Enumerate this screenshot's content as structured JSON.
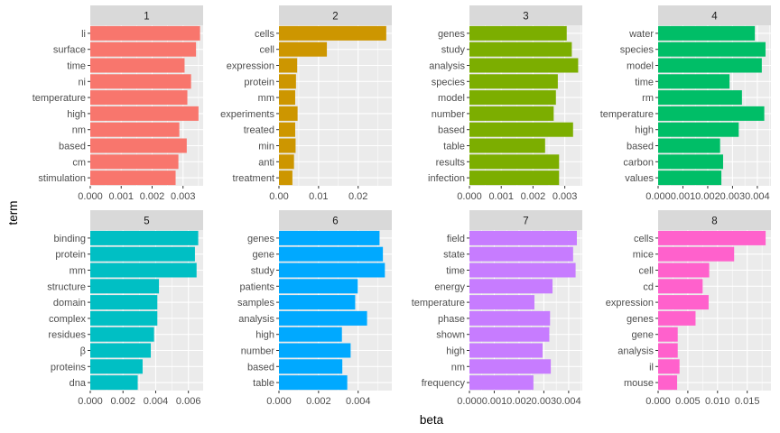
{
  "chart_data": {
    "type": "bar",
    "orientation": "horizontal",
    "facet": "wrap",
    "xlabel": "beta",
    "ylabel": "term",
    "grid": true,
    "legend": "none",
    "panels": [
      {
        "title": "1",
        "color": "#F8766D",
        "xlim": [
          0,
          0.00365
        ],
        "xticks": [
          0.0,
          0.001,
          0.002,
          0.003
        ],
        "tick_labels": [
          "0.000",
          "0.001",
          "0.002",
          "0.003"
        ],
        "categories": [
          "li",
          "surface",
          "time",
          "ni",
          "temperature",
          "high",
          "nm",
          "based",
          "cm",
          "stimulation"
        ],
        "values": [
          0.00355,
          0.00342,
          0.00305,
          0.00326,
          0.00314,
          0.0035,
          0.00288,
          0.00312,
          0.00285,
          0.00276
        ]
      },
      {
        "title": "2",
        "color": "#CD9600",
        "xlim": [
          0,
          0.0285
        ],
        "xticks": [
          0.0,
          0.01,
          0.02
        ],
        "tick_labels": [
          "0.00",
          "0.01",
          "0.02"
        ],
        "categories": [
          "cells",
          "cell",
          "expression",
          "protein",
          "mm",
          "experiments",
          "treated",
          "min",
          "anti",
          "treatment"
        ],
        "values": [
          0.0271,
          0.0121,
          0.0046,
          0.0043,
          0.0041,
          0.0047,
          0.0041,
          0.0042,
          0.0038,
          0.0034
        ]
      },
      {
        "title": "3",
        "color": "#7CAE00",
        "xlim": [
          0,
          0.00355
        ],
        "xticks": [
          0.0,
          0.001,
          0.002,
          0.003
        ],
        "tick_labels": [
          "0.000",
          "0.001",
          "0.002",
          "0.003"
        ],
        "categories": [
          "genes",
          "study",
          "analysis",
          "species",
          "model",
          "number",
          "based",
          "table",
          "results",
          "infection"
        ],
        "values": [
          0.00306,
          0.00322,
          0.00342,
          0.00278,
          0.00272,
          0.00265,
          0.00326,
          0.00238,
          0.00282,
          0.00282
        ]
      },
      {
        "title": "4",
        "color": "#00BE67",
        "xlim": [
          0,
          0.00455
        ],
        "xticks": [
          0.0,
          0.001,
          0.002,
          0.003,
          0.004
        ],
        "tick_labels": [
          "0.000",
          "0.001",
          "0.002",
          "0.003",
          "0.004"
        ],
        "categories": [
          "water",
          "species",
          "model",
          "time",
          "rm",
          "temperature",
          "high",
          "based",
          "carbon",
          "values"
        ],
        "values": [
          0.0039,
          0.00433,
          0.00418,
          0.00288,
          0.00338,
          0.00428,
          0.00325,
          0.0025,
          0.00262,
          0.00255
        ]
      },
      {
        "title": "5",
        "color": "#00BFC4",
        "xlim": [
          0,
          0.0069
        ],
        "xticks": [
          0.0,
          0.002,
          0.004,
          0.006
        ],
        "tick_labels": [
          "0.000",
          "0.002",
          "0.004",
          "0.006"
        ],
        "categories": [
          "binding",
          "protein",
          "mm",
          "structure",
          "domain",
          "complex",
          "residues",
          "β",
          "proteins",
          "dna"
        ],
        "values": [
          0.0066,
          0.0064,
          0.0065,
          0.0042,
          0.0041,
          0.0041,
          0.0039,
          0.0037,
          0.0032,
          0.0029
        ]
      },
      {
        "title": "6",
        "color": "#00A9FF",
        "xlim": [
          0,
          0.0057
        ],
        "xticks": [
          0.0,
          0.002,
          0.004
        ],
        "tick_labels": [
          "0.000",
          "0.002",
          "0.004"
        ],
        "categories": [
          "genes",
          "gene",
          "study",
          "patients",
          "samples",
          "analysis",
          "high",
          "number",
          "based",
          "table"
        ],
        "values": [
          0.00508,
          0.00525,
          0.00535,
          0.00398,
          0.00385,
          0.00445,
          0.00318,
          0.00362,
          0.0032,
          0.00345
        ]
      },
      {
        "title": "7",
        "color": "#C77CFF",
        "xlim": [
          0,
          0.00455
        ],
        "xticks": [
          0.0,
          0.001,
          0.002,
          0.003,
          0.004
        ],
        "tick_labels": [
          "0.000",
          "0.001",
          "0.002",
          "0.003",
          "0.004"
        ],
        "categories": [
          "field",
          "state",
          "time",
          "energy",
          "temperature",
          "phase",
          "shown",
          "high",
          "nm",
          "frequency"
        ],
        "values": [
          0.00433,
          0.00418,
          0.00428,
          0.00335,
          0.00262,
          0.00325,
          0.00322,
          0.00295,
          0.00328,
          0.00258
        ]
      },
      {
        "title": "8",
        "color": "#FF61CC",
        "xlim": [
          0,
          0.019
        ],
        "xticks": [
          0.0,
          0.005,
          0.01,
          0.015
        ],
        "tick_labels": [
          "0.000",
          "0.005",
          "0.010",
          "0.015"
        ],
        "categories": [
          "cells",
          "mice",
          "cell",
          "cd",
          "expression",
          "genes",
          "gene",
          "analysis",
          "il",
          "mouse"
        ],
        "values": [
          0.0181,
          0.0128,
          0.0086,
          0.0075,
          0.0085,
          0.0063,
          0.0033,
          0.0033,
          0.0036,
          0.0032
        ]
      }
    ]
  }
}
